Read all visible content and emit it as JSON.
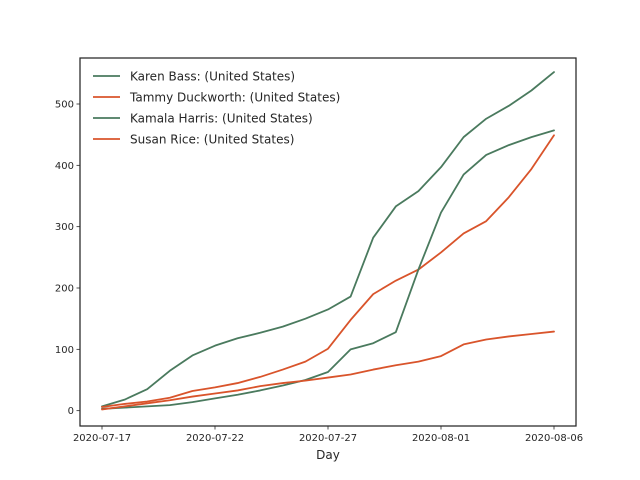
{
  "chart_data": {
    "type": "line",
    "title": "",
    "xlabel": "Day",
    "ylabel": "",
    "x": [
      "2020-07-17",
      "2020-07-18",
      "2020-07-19",
      "2020-07-20",
      "2020-07-21",
      "2020-07-22",
      "2020-07-23",
      "2020-07-24",
      "2020-07-25",
      "2020-07-26",
      "2020-07-27",
      "2020-07-28",
      "2020-07-29",
      "2020-07-30",
      "2020-07-31",
      "2020-08-01",
      "2020-08-02",
      "2020-08-03",
      "2020-08-04",
      "2020-08-05",
      "2020-08-06"
    ],
    "x_ticks": [
      "2020-07-17",
      "2020-07-22",
      "2020-07-27",
      "2020-08-01",
      "2020-08-06"
    ],
    "y_ticks": [
      0,
      100,
      200,
      300,
      400,
      500
    ],
    "ylim": [
      -25,
      575
    ],
    "legend_position": "upper left",
    "grid": false,
    "series": [
      {
        "name": "Karen Bass: (United States)",
        "color": "#4a7a5e",
        "values": [
          7,
          18,
          35,
          65,
          90,
          106,
          118,
          127,
          137,
          150,
          165,
          186,
          282,
          333,
          358,
          397,
          446,
          476,
          497,
          522,
          552
        ]
      },
      {
        "name": "Tammy Duckworth: (United States)",
        "color": "#d9542b",
        "values": [
          6,
          11,
          15,
          21,
          32,
          38,
          45,
          55,
          67,
          80,
          101,
          148,
          190,
          212,
          230,
          258,
          289,
          309,
          348,
          394,
          449
        ]
      },
      {
        "name": "Kamala Harris: (United States)",
        "color": "#4a7a5e",
        "values": [
          3,
          5,
          7,
          9,
          14,
          20,
          26,
          33,
          41,
          50,
          63,
          100,
          110,
          128,
          230,
          323,
          385,
          417,
          433,
          446,
          457
        ]
      },
      {
        "name": "Susan Rice: (United States)",
        "color": "#d9542b",
        "values": [
          2,
          7,
          12,
          17,
          23,
          28,
          33,
          40,
          45,
          49,
          54,
          59,
          67,
          74,
          80,
          89,
          108,
          116,
          121,
          125,
          129
        ]
      }
    ]
  }
}
